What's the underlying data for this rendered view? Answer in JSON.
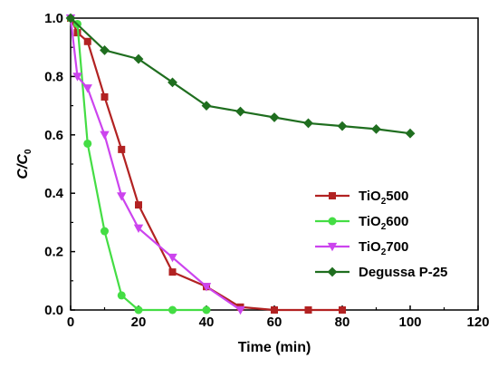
{
  "chart_data": {
    "type": "line",
    "xlabel": "Time (min)",
    "ylabel": {
      "main": "C/C",
      "sub": "0"
    },
    "xlim": [
      0,
      120
    ],
    "ylim": [
      0,
      1.0
    ],
    "xticks": [
      "0",
      "20",
      "40",
      "60",
      "80",
      "100",
      "120"
    ],
    "yticks": [
      "0.0",
      "0.2",
      "0.4",
      "0.6",
      "0.8",
      "1.0"
    ],
    "grid": false,
    "legend_position": "center-right",
    "series": [
      {
        "name": "TiO2500",
        "name_parts": {
          "pre": "TiO",
          "sub": "2",
          "post": "500"
        },
        "color": "#b22222",
        "marker": "square",
        "x": [
          0,
          2,
          5,
          10,
          15,
          20,
          30,
          40,
          50,
          60,
          70,
          80
        ],
        "y": [
          1.0,
          0.95,
          0.92,
          0.73,
          0.55,
          0.36,
          0.13,
          0.08,
          0.01,
          0.0,
          0.0,
          0.0
        ]
      },
      {
        "name": "TiO2600",
        "name_parts": {
          "pre": "TiO",
          "sub": "2",
          "post": "600"
        },
        "color": "#44dd44",
        "marker": "circle",
        "x": [
          0,
          2,
          5,
          10,
          15,
          20,
          30,
          40
        ],
        "y": [
          1.0,
          0.98,
          0.57,
          0.27,
          0.05,
          0.0,
          0.0,
          0.0
        ]
      },
      {
        "name": "TiO2700",
        "name_parts": {
          "pre": "TiO",
          "sub": "2",
          "post": "700"
        },
        "color": "#cc44ee",
        "marker": "triangle-down",
        "x": [
          0,
          2,
          5,
          10,
          15,
          20,
          30,
          40,
          50
        ],
        "y": [
          1.0,
          0.8,
          0.76,
          0.6,
          0.39,
          0.28,
          0.18,
          0.08,
          0.0
        ]
      },
      {
        "name": "Degussa P-25",
        "name_parts": {
          "pre": "Degussa P-25",
          "sub": "",
          "post": ""
        },
        "color": "#1f6e1f",
        "marker": "diamond",
        "x": [
          0,
          10,
          20,
          30,
          40,
          50,
          60,
          70,
          80,
          90,
          100
        ],
        "y": [
          1.0,
          0.89,
          0.86,
          0.78,
          0.7,
          0.68,
          0.66,
          0.64,
          0.63,
          0.62,
          0.605
        ]
      }
    ]
  }
}
